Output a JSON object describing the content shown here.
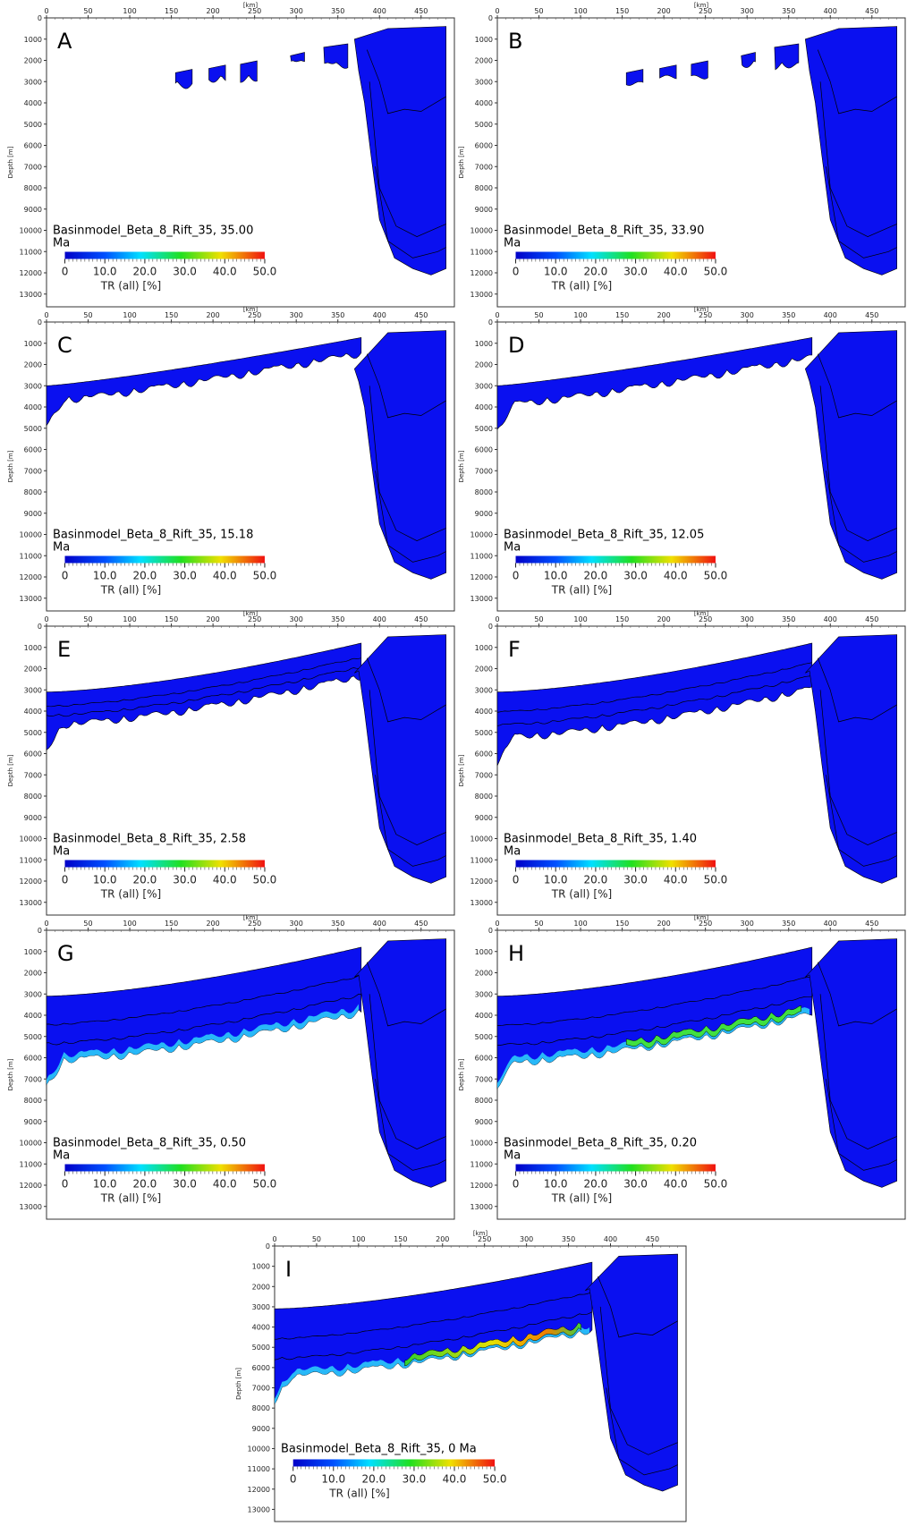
{
  "chart_data": [
    {
      "type": "section",
      "letter": "A",
      "title": "Basinmodel_Beta_8_Rift_35, 35.00",
      "subtitle": "Ma",
      "xlabel": "[km]",
      "ylabel": "Depth [m]",
      "xlim": [
        0,
        490
      ],
      "ylim": [
        0,
        13600
      ],
      "yreverse": true,
      "xticks": [
        0,
        50,
        100,
        150,
        200,
        250,
        300,
        350,
        400,
        450
      ],
      "yticks": [
        0,
        1000,
        2000,
        3000,
        4000,
        5000,
        6000,
        7000,
        8000,
        9000,
        10000,
        11000,
        12000,
        13000
      ],
      "colorbar": {
        "label": "TR (all) [%]",
        "lim": [
          0,
          50
        ],
        "ticks": [
          0,
          {
            "value": 10,
            "label": "10.0"
          },
          {
            "value": 20,
            "label": "20.0"
          },
          {
            "value": 30,
            "label": "30.0"
          },
          {
            "value": 40,
            "label": "40.0"
          },
          {
            "value": 50,
            "label": "50.0"
          }
        ]
      }
    },
    {
      "type": "section",
      "letter": "B",
      "title": "Basinmodel_Beta_8_Rift_35, 33.90",
      "subtitle": "Ma",
      "xlabel": "[km]",
      "ylabel": "Depth [m]",
      "xlim": [
        0,
        490
      ],
      "ylim": [
        0,
        13600
      ],
      "yreverse": true,
      "xticks": [
        0,
        50,
        100,
        150,
        200,
        250,
        300,
        350,
        400,
        450
      ],
      "yticks": [
        0,
        1000,
        2000,
        3000,
        4000,
        5000,
        6000,
        7000,
        8000,
        9000,
        10000,
        11000,
        12000,
        13000
      ],
      "colorbar": {
        "label": "TR (all) [%]",
        "lim": [
          0,
          50
        ],
        "ticks": [
          0,
          {
            "value": 10,
            "label": "10.0"
          },
          {
            "value": 20,
            "label": "20.0"
          },
          {
            "value": 30,
            "label": "30.0"
          },
          {
            "value": 40,
            "label": "40.0"
          },
          {
            "value": 50,
            "label": "50.0"
          }
        ]
      }
    },
    {
      "type": "section",
      "letter": "C",
      "title": "Basinmodel_Beta_8_Rift_35, 15.18",
      "subtitle": "Ma",
      "xlabel": "[km]",
      "ylabel": "Depth [m]",
      "xlim": [
        0,
        490
      ],
      "ylim": [
        0,
        13600
      ],
      "yreverse": true,
      "xticks": [
        0,
        50,
        100,
        150,
        200,
        250,
        300,
        350,
        400,
        450
      ],
      "yticks": [
        0,
        1000,
        2000,
        3000,
        4000,
        5000,
        6000,
        7000,
        8000,
        9000,
        10000,
        11000,
        12000,
        13000
      ],
      "colorbar": {
        "label": "TR (all) [%]",
        "lim": [
          0,
          50
        ],
        "ticks": [
          0,
          {
            "value": 10,
            "label": "10.0"
          },
          {
            "value": 20,
            "label": "20.0"
          },
          {
            "value": 30,
            "label": "30.0"
          },
          {
            "value": 40,
            "label": "40.0"
          },
          {
            "value": 50,
            "label": "50.0"
          }
        ]
      }
    },
    {
      "type": "section",
      "letter": "D",
      "title": "Basinmodel_Beta_8_Rift_35, 12.05",
      "subtitle": "Ma",
      "xlabel": "[km]",
      "ylabel": "Depth [m]",
      "xlim": [
        0,
        490
      ],
      "ylim": [
        0,
        13600
      ],
      "yreverse": true,
      "xticks": [
        0,
        50,
        100,
        150,
        200,
        250,
        300,
        350,
        400,
        450
      ],
      "yticks": [
        0,
        1000,
        2000,
        3000,
        4000,
        5000,
        6000,
        7000,
        8000,
        9000,
        10000,
        11000,
        12000,
        13000
      ],
      "colorbar": {
        "label": "TR (all) [%]",
        "lim": [
          0,
          50
        ],
        "ticks": [
          0,
          {
            "value": 10,
            "label": "10.0"
          },
          {
            "value": 20,
            "label": "20.0"
          },
          {
            "value": 30,
            "label": "30.0"
          },
          {
            "value": 40,
            "label": "40.0"
          },
          {
            "value": 50,
            "label": "50.0"
          }
        ]
      }
    },
    {
      "type": "section",
      "letter": "E",
      "title": "Basinmodel_Beta_8_Rift_35, 2.58",
      "subtitle": "Ma",
      "xlabel": "[km]",
      "ylabel": "Depth [m]",
      "xlim": [
        0,
        490
      ],
      "ylim": [
        0,
        13600
      ],
      "yreverse": true,
      "xticks": [
        0,
        50,
        100,
        150,
        200,
        250,
        300,
        350,
        400,
        450
      ],
      "yticks": [
        0,
        1000,
        2000,
        3000,
        4000,
        5000,
        6000,
        7000,
        8000,
        9000,
        10000,
        11000,
        12000,
        13000
      ],
      "colorbar": {
        "label": "TR (all) [%]",
        "lim": [
          0,
          50
        ],
        "ticks": [
          0,
          {
            "value": 10,
            "label": "10.0"
          },
          {
            "value": 20,
            "label": "20.0"
          },
          {
            "value": 30,
            "label": "30.0"
          },
          {
            "value": 40,
            "label": "40.0"
          },
          {
            "value": 50,
            "label": "50.0"
          }
        ]
      }
    },
    {
      "type": "section",
      "letter": "F",
      "title": "Basinmodel_Beta_8_Rift_35, 1.40",
      "subtitle": "Ma",
      "xlabel": "[km]",
      "ylabel": "Depth [m]",
      "xlim": [
        0,
        490
      ],
      "ylim": [
        0,
        13600
      ],
      "yreverse": true,
      "xticks": [
        0,
        50,
        100,
        150,
        200,
        250,
        300,
        350,
        400,
        450
      ],
      "yticks": [
        0,
        1000,
        2000,
        3000,
        4000,
        5000,
        6000,
        7000,
        8000,
        9000,
        10000,
        11000,
        12000,
        13000
      ],
      "colorbar": {
        "label": "TR (all) [%]",
        "lim": [
          0,
          50
        ],
        "ticks": [
          0,
          {
            "value": 10,
            "label": "10.0"
          },
          {
            "value": 20,
            "label": "20.0"
          },
          {
            "value": 30,
            "label": "30.0"
          },
          {
            "value": 40,
            "label": "40.0"
          },
          {
            "value": 50,
            "label": "50.0"
          }
        ]
      }
    },
    {
      "type": "section",
      "letter": "G",
      "title": "Basinmodel_Beta_8_Rift_35, 0.50",
      "subtitle": "Ma",
      "xlabel": "[km]",
      "ylabel": "Depth [m]",
      "xlim": [
        0,
        490
      ],
      "ylim": [
        0,
        13600
      ],
      "yreverse": true,
      "xticks": [
        0,
        50,
        100,
        150,
        200,
        250,
        300,
        350,
        400,
        450
      ],
      "yticks": [
        0,
        1000,
        2000,
        3000,
        4000,
        5000,
        6000,
        7000,
        8000,
        9000,
        10000,
        11000,
        12000,
        13000
      ],
      "colorbar": {
        "label": "TR (all) [%]",
        "lim": [
          0,
          50
        ],
        "ticks": [
          0,
          {
            "value": 10,
            "label": "10.0"
          },
          {
            "value": 20,
            "label": "20.0"
          },
          {
            "value": 30,
            "label": "30.0"
          },
          {
            "value": 40,
            "label": "40.0"
          },
          {
            "value": 50,
            "label": "50.0"
          }
        ]
      }
    },
    {
      "type": "section",
      "letter": "H",
      "title": "Basinmodel_Beta_8_Rift_35, 0.20",
      "subtitle": "Ma",
      "xlabel": "[km]",
      "ylabel": "Depth [m]",
      "xlim": [
        0,
        490
      ],
      "ylim": [
        0,
        13600
      ],
      "yreverse": true,
      "xticks": [
        0,
        50,
        100,
        150,
        200,
        250,
        300,
        350,
        400,
        450
      ],
      "yticks": [
        0,
        1000,
        2000,
        3000,
        4000,
        5000,
        6000,
        7000,
        8000,
        9000,
        10000,
        11000,
        12000,
        13000
      ],
      "colorbar": {
        "label": "TR (all) [%]",
        "lim": [
          0,
          50
        ],
        "ticks": [
          0,
          {
            "value": 10,
            "label": "10.0"
          },
          {
            "value": 20,
            "label": "20.0"
          },
          {
            "value": 30,
            "label": "30.0"
          },
          {
            "value": 40,
            "label": "40.0"
          },
          {
            "value": 50,
            "label": "50.0"
          }
        ]
      }
    },
    {
      "type": "section",
      "letter": "I",
      "title": "Basinmodel_Beta_8_Rift_35, 0 Ma",
      "xlabel": "[km]",
      "ylabel": "Depth [m]",
      "xlim": [
        0,
        490
      ],
      "ylim": [
        0,
        13600
      ],
      "yreverse": true,
      "xticks": [
        0,
        50,
        100,
        150,
        200,
        250,
        300,
        350,
        400,
        450
      ],
      "yticks": [
        0,
        1000,
        2000,
        3000,
        4000,
        5000,
        6000,
        7000,
        8000,
        9000,
        10000,
        11000,
        12000,
        13000
      ],
      "colorbar": {
        "label": "TR (all) [%]",
        "lim": [
          0,
          50
        ],
        "ticks": [
          0,
          {
            "value": 10,
            "label": "10.0"
          },
          {
            "value": 20,
            "label": "20.0"
          },
          {
            "value": 30,
            "label": "30.0"
          },
          {
            "value": 40,
            "label": "40.0"
          },
          {
            "value": 50,
            "label": "50.0"
          }
        ]
      }
    }
  ]
}
